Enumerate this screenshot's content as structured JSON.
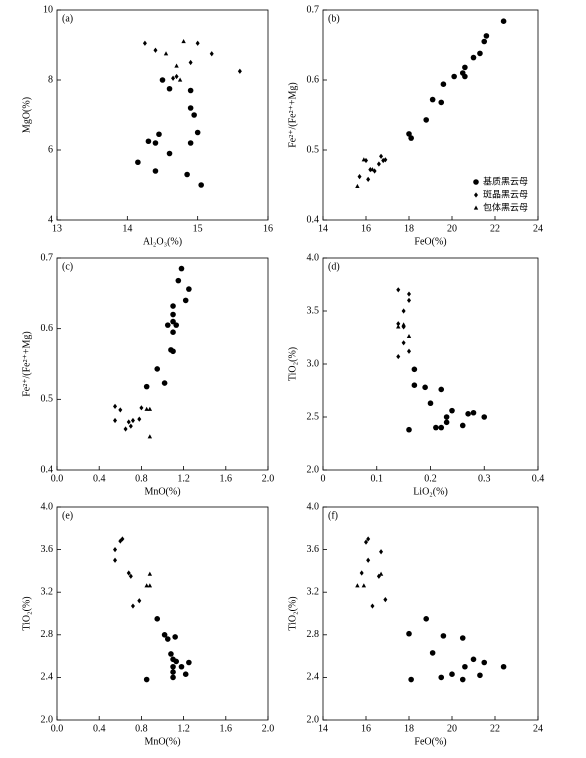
{
  "chart_data": [
    {
      "type": "scatter",
      "label": "(a)",
      "x_label": "Al₂O₃(%)",
      "y_label": "MgO(%)",
      "xlim": [
        13,
        16
      ],
      "xticks": [
        13,
        14,
        15,
        16
      ],
      "ylim": [
        4,
        10
      ],
      "yticks": [
        4,
        6,
        8,
        10
      ],
      "series": [
        {
          "marker": "circle",
          "color": "#000000",
          "x": [
            14.15,
            14.3,
            14.4,
            14.45,
            14.4,
            14.6,
            14.6,
            14.85,
            14.9,
            14.9,
            14.95,
            15.0,
            15.05,
            14.9,
            14.5
          ],
          "values": [
            5.65,
            6.25,
            6.2,
            6.45,
            5.4,
            5.9,
            7.75,
            5.3,
            7.7,
            7.2,
            7.0,
            6.5,
            5.0,
            6.2,
            8.0
          ]
        },
        {
          "marker": "diamond",
          "color": "#000000",
          "x": [
            14.25,
            14.4,
            15.0,
            15.2,
            15.6,
            14.9,
            14.7,
            14.65
          ],
          "values": [
            9.05,
            8.85,
            9.05,
            8.75,
            8.25,
            8.5,
            8.1,
            8.05
          ]
        },
        {
          "marker": "triangle",
          "color": "#000000",
          "x": [
            14.8,
            14.55,
            14.7,
            14.75
          ],
          "values": [
            9.1,
            8.75,
            8.4,
            8.0
          ]
        }
      ]
    },
    {
      "type": "scatter",
      "label": "(b)",
      "x_label": "FeO(%)",
      "y_label": "Fe²⁺/(Fe²⁺+Mg)",
      "legend": "lower right",
      "xlim": [
        14,
        24
      ],
      "xticks": [
        14,
        16,
        18,
        20,
        22,
        24
      ],
      "ylim": [
        0.4,
        0.7
      ],
      "yticks": [
        0.4,
        0.5,
        0.6,
        0.7
      ],
      "series": [
        {
          "name": "基质黑云母",
          "marker": "circle",
          "color": "#000000",
          "x": [
            18.0,
            18.1,
            18.8,
            19.1,
            19.5,
            19.6,
            20.1,
            20.5,
            20.6,
            21.0,
            21.3,
            21.5,
            21.6,
            22.4,
            20.6
          ],
          "values": [
            0.523,
            0.517,
            0.543,
            0.572,
            0.568,
            0.594,
            0.605,
            0.61,
            0.618,
            0.632,
            0.638,
            0.655,
            0.663,
            0.684,
            0.605
          ]
        },
        {
          "name": "斑晶黑云母",
          "marker": "diamond",
          "color": "#000000",
          "x": [
            15.7,
            16.0,
            16.2,
            16.4,
            16.7,
            16.8,
            16.9,
            16.1,
            16.6
          ],
          "values": [
            0.462,
            0.485,
            0.472,
            0.47,
            0.491,
            0.485,
            0.486,
            0.458,
            0.48
          ]
        },
        {
          "name": "包体黑云母",
          "marker": "triangle",
          "color": "#000000",
          "x": [
            15.6,
            15.9,
            16.3
          ],
          "values": [
            0.448,
            0.486,
            0.472
          ]
        }
      ]
    },
    {
      "type": "scatter",
      "label": "(c)",
      "x_label": "MnO(%)",
      "y_label": "Fe²⁺/(Fe²⁺+Mg)",
      "xlim": [
        0,
        2
      ],
      "xticks": [
        {
          "value": 0,
          "label": "0.0"
        },
        0.4,
        0.8,
        1.2,
        1.6,
        {
          "value": 2,
          "label": "2.0"
        }
      ],
      "ylim": [
        0.4,
        0.7
      ],
      "yticks": [
        0.4,
        0.5,
        0.6,
        0.7
      ],
      "series": [
        {
          "marker": "circle",
          "color": "#000000",
          "x": [
            0.85,
            0.95,
            1.02,
            1.05,
            1.08,
            1.1,
            1.1,
            1.1,
            1.1,
            1.1,
            1.15,
            1.18,
            1.22,
            1.25,
            1.13
          ],
          "values": [
            0.518,
            0.543,
            0.523,
            0.605,
            0.57,
            0.568,
            0.595,
            0.61,
            0.62,
            0.632,
            0.668,
            0.685,
            0.64,
            0.656,
            0.605
          ]
        },
        {
          "marker": "diamond",
          "color": "#000000",
          "x": [
            0.55,
            0.6,
            0.55,
            0.65,
            0.7,
            0.72,
            0.78,
            0.8,
            0.68
          ],
          "values": [
            0.49,
            0.485,
            0.47,
            0.458,
            0.462,
            0.47,
            0.472,
            0.488,
            0.468
          ]
        },
        {
          "marker": "triangle",
          "color": "#000000",
          "x": [
            0.85,
            0.88,
            0.88
          ],
          "values": [
            0.486,
            0.486,
            0.447
          ]
        }
      ]
    },
    {
      "type": "scatter",
      "label": "(d)",
      "x_label": "LiO₂(%)",
      "y_label": "TiO₂(%)",
      "xlim": [
        0,
        0.4
      ],
      "xticks": [
        0,
        0.1,
        0.2,
        0.3,
        0.4
      ],
      "ylim": [
        2,
        4
      ],
      "yticks": [
        {
          "value": 2,
          "label": "2.0"
        },
        2.5,
        {
          "value": 3,
          "label": "3.0"
        },
        3.5,
        {
          "value": 4,
          "label": "4.0"
        }
      ],
      "series": [
        {
          "marker": "circle",
          "color": "#000000",
          "x": [
            0.16,
            0.17,
            0.17,
            0.19,
            0.2,
            0.21,
            0.22,
            0.22,
            0.23,
            0.23,
            0.24,
            0.26,
            0.27,
            0.28,
            0.3
          ],
          "values": [
            2.38,
            2.95,
            2.8,
            2.78,
            2.63,
            2.4,
            2.4,
            2.76,
            2.45,
            2.5,
            2.56,
            2.42,
            2.53,
            2.54,
            2.5
          ]
        },
        {
          "marker": "diamond",
          "color": "#000000",
          "x": [
            0.14,
            0.15,
            0.16,
            0.16,
            0.14,
            0.15,
            0.14,
            0.16,
            0.15
          ],
          "values": [
            3.7,
            3.5,
            3.66,
            3.6,
            3.38,
            3.2,
            3.07,
            3.12,
            3.35
          ]
        },
        {
          "marker": "triangle",
          "color": "#000000",
          "x": [
            0.14,
            0.15,
            0.16
          ],
          "values": [
            3.35,
            3.37,
            3.26
          ]
        }
      ]
    },
    {
      "type": "scatter",
      "label": "(e)",
      "x_label": "MnO(%)",
      "y_label": "TiO₂(%)",
      "xlim": [
        0,
        2
      ],
      "xticks": [
        {
          "value": 0,
          "label": "0.0"
        },
        0.4,
        0.8,
        1.2,
        1.6,
        {
          "value": 2,
          "label": "2.0"
        }
      ],
      "ylim": [
        2,
        4
      ],
      "yticks": [
        {
          "value": 2,
          "label": "2.0"
        },
        2.4,
        2.8,
        3.2,
        3.6,
        {
          "value": 4,
          "label": "4.0"
        }
      ],
      "series": [
        {
          "marker": "circle",
          "color": "#000000",
          "x": [
            0.85,
            0.95,
            1.02,
            1.05,
            1.08,
            1.1,
            1.1,
            1.1,
            1.1,
            1.12,
            1.13,
            1.18,
            1.22,
            1.25
          ],
          "values": [
            2.38,
            2.95,
            2.8,
            2.76,
            2.62,
            2.4,
            2.45,
            2.5,
            2.57,
            2.78,
            2.55,
            2.5,
            2.43,
            2.54
          ]
        },
        {
          "marker": "diamond",
          "color": "#000000",
          "x": [
            0.55,
            0.55,
            0.6,
            0.62,
            0.68,
            0.7,
            0.72,
            0.78
          ],
          "values": [
            3.5,
            3.6,
            3.68,
            3.7,
            3.38,
            3.35,
            3.07,
            3.12
          ]
        },
        {
          "marker": "triangle",
          "color": "#000000",
          "x": [
            0.85,
            0.88,
            0.88
          ],
          "values": [
            3.26,
            3.37,
            3.26
          ]
        }
      ]
    },
    {
      "type": "scatter",
      "label": "(f)",
      "x_label": "FeO(%)",
      "y_label": "TiO₂(%)",
      "xlim": [
        14,
        24
      ],
      "xticks": [
        14,
        16,
        18,
        20,
        22,
        24
      ],
      "ylim": [
        2,
        4
      ],
      "yticks": [
        {
          "value": 2,
          "label": "2.0"
        },
        2.4,
        2.8,
        3.2,
        3.6,
        {
          "value": 4,
          "label": "4.0"
        }
      ],
      "series": [
        {
          "marker": "circle",
          "color": "#000000",
          "x": [
            18.0,
            18.1,
            18.8,
            19.1,
            19.5,
            19.6,
            20.0,
            20.5,
            20.5,
            20.6,
            21.0,
            21.3,
            21.5,
            22.4
          ],
          "values": [
            2.81,
            2.38,
            2.95,
            2.63,
            2.4,
            2.79,
            2.43,
            2.38,
            2.77,
            2.5,
            2.57,
            2.42,
            2.54,
            2.5
          ]
        },
        {
          "marker": "diamond",
          "color": "#000000",
          "x": [
            15.8,
            16.0,
            16.1,
            16.1,
            16.3,
            16.6,
            16.7,
            16.9
          ],
          "values": [
            3.38,
            3.67,
            3.7,
            3.5,
            3.07,
            3.35,
            3.58,
            3.13
          ]
        },
        {
          "marker": "triangle",
          "color": "#000000",
          "x": [
            15.6,
            15.9,
            16.7
          ],
          "values": [
            3.26,
            3.26,
            3.37
          ]
        }
      ]
    }
  ]
}
